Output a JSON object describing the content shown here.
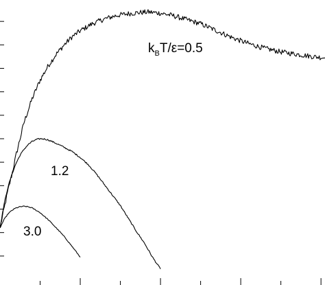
{
  "chart_data": {
    "type": "line",
    "title": "",
    "xlabel": "",
    "ylabel": "",
    "xlim": [
      0,
      8.1
    ],
    "ylim": [
      0,
      12
    ],
    "x_major_ticks": [
      2,
      4,
      6,
      8
    ],
    "x_minor_ticks": [
      1,
      3,
      5,
      7
    ],
    "y_ticks": [
      1,
      2,
      3,
      4,
      5,
      6,
      7,
      8,
      9,
      10,
      11
    ],
    "grid": false,
    "legend": "none",
    "line_color": "#000000",
    "series": [
      {
        "name": "kBT/ε=0.5",
        "label_parts": {
          "k": "k",
          "sub": "B",
          "rest": "T/ε=0.5"
        },
        "noise": 0.11,
        "x": [
          0,
          0.1,
          0.2,
          0.3,
          0.4,
          0.5,
          0.6,
          0.7,
          0.8,
          0.9,
          1.0,
          1.2,
          1.4,
          1.6,
          1.8,
          2.0,
          2.3,
          2.6,
          2.9,
          3.2,
          3.5,
          3.7,
          4.0,
          4.3,
          4.6,
          5.0,
          5.4,
          5.8,
          6.2,
          6.6,
          7.0,
          7.4,
          7.8,
          8.1
        ],
        "y": [
          2.2,
          3.0,
          3.8,
          4.5,
          5.3,
          6.0,
          6.7,
          7.2,
          7.7,
          8.1,
          8.5,
          9.1,
          9.6,
          10.0,
          10.35,
          10.6,
          10.9,
          11.1,
          11.25,
          11.33,
          11.38,
          11.4,
          11.35,
          11.25,
          11.1,
          10.9,
          10.6,
          10.3,
          10.05,
          9.85,
          9.7,
          9.6,
          9.5,
          9.45
        ]
      },
      {
        "name": "1.2",
        "noise": 0.03,
        "x": [
          0,
          0.1,
          0.2,
          0.3,
          0.4,
          0.5,
          0.6,
          0.7,
          0.8,
          0.9,
          1.0,
          1.1,
          1.2,
          1.3,
          1.4,
          1.5,
          1.6,
          1.8,
          2.0,
          2.2,
          2.4,
          2.6,
          2.8,
          3.0,
          3.2,
          3.4,
          3.6,
          3.8,
          4.0
        ],
        "y": [
          2.2,
          3.2,
          3.95,
          4.5,
          4.95,
          5.3,
          5.55,
          5.75,
          5.88,
          5.96,
          6.0,
          5.99,
          5.95,
          5.88,
          5.8,
          5.72,
          5.63,
          5.45,
          5.2,
          4.9,
          4.5,
          4.05,
          3.6,
          3.15,
          2.6,
          2.05,
          1.55,
          0.95,
          0.45
        ]
      },
      {
        "name": "3.0",
        "noise": 0.02,
        "x": [
          0,
          0.1,
          0.2,
          0.3,
          0.4,
          0.5,
          0.6,
          0.7,
          0.8,
          0.9,
          1.0,
          1.1,
          1.2,
          1.3,
          1.4,
          1.5,
          1.6,
          1.7,
          1.8,
          1.9,
          2.0
        ],
        "y": [
          2.2,
          2.55,
          2.8,
          2.95,
          3.05,
          3.1,
          3.12,
          3.1,
          3.05,
          2.95,
          2.85,
          2.7,
          2.55,
          2.38,
          2.2,
          2.02,
          1.83,
          1.62,
          1.4,
          1.18,
          0.95
        ]
      }
    ]
  }
}
